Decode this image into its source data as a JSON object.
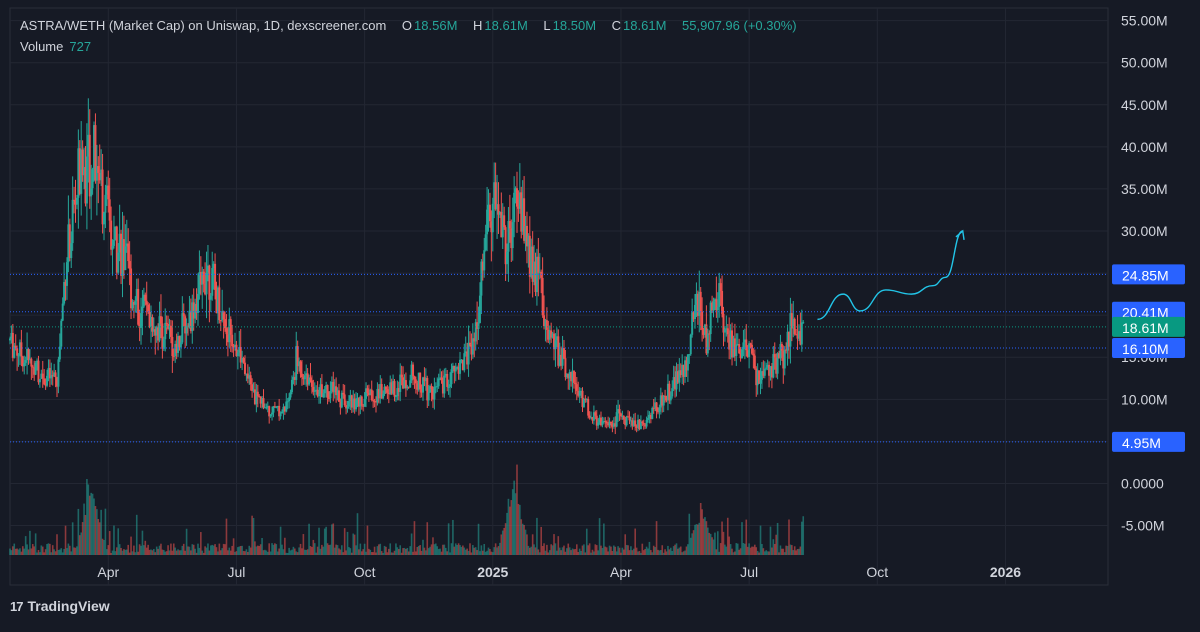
{
  "legend": {
    "pair": "ASTRA/WETH (Market Cap) on Uniswap, 1D, dexscreener.com",
    "o_label": "O",
    "o_val": "18.56M",
    "h_label": "H",
    "h_val": "18.61M",
    "l_label": "L",
    "l_val": "18.50M",
    "c_label": "C",
    "c_val": "18.61M",
    "change": "55,907.96 (+0.30%)",
    "volume_label": "Volume",
    "volume_val": "727"
  },
  "brand": {
    "logo": "17",
    "name": "TradingView"
  },
  "colors": {
    "background": "#161a25",
    "up": "#26a69a",
    "down": "#ef5350",
    "hline": "#2962ff",
    "projection": "#22c5e8",
    "price_tag": "#089981"
  },
  "chart_data": {
    "type": "candlestick",
    "title": "ASTRA/WETH (Market Cap) on Uniswap, 1D, dexscreener.com",
    "y_unit": "M",
    "ylim": [
      -8.5,
      56.5
    ],
    "y_ticks": [
      "55.00M",
      "50.00M",
      "45.00M",
      "40.00M",
      "35.00M",
      "30.00M",
      "25.00M",
      "20.00M",
      "15.00M",
      "10.00M",
      "5.00M",
      "0.0000",
      "-5.00M"
    ],
    "y_tick_values": [
      55,
      50,
      45,
      40,
      35,
      30,
      25,
      20,
      15,
      10,
      5,
      0,
      -5
    ],
    "x_ticks": [
      {
        "label": "Apr",
        "t": 2.0
      },
      {
        "label": "Jul",
        "t": 5.0
      },
      {
        "label": "Oct",
        "t": 8.0
      },
      {
        "label": "2025",
        "t": 11.0,
        "bold": true
      },
      {
        "label": "Apr",
        "t": 14.0
      },
      {
        "label": "Jul",
        "t": 17.0
      },
      {
        "label": "Oct",
        "t": 20.0
      },
      {
        "label": "2026",
        "t": 23.0,
        "bold": true
      }
    ],
    "x_range_months": [
      -0.3,
      25.4
    ],
    "price_path": [
      [
        -0.3,
        17
      ],
      [
        0.3,
        13.5
      ],
      [
        0.8,
        12
      ],
      [
        1.0,
        26
      ],
      [
        1.3,
        36
      ],
      [
        1.7,
        39
      ],
      [
        2.0,
        31
      ],
      [
        2.3,
        28
      ],
      [
        2.5,
        24
      ],
      [
        2.7,
        20
      ],
      [
        3.0,
        19.5
      ],
      [
        3.3,
        18
      ],
      [
        3.6,
        17
      ],
      [
        4.0,
        21
      ],
      [
        4.3,
        26
      ],
      [
        4.6,
        21
      ],
      [
        5.0,
        16
      ],
      [
        5.3,
        11.5
      ],
      [
        5.7,
        9
      ],
      [
        6.0,
        8.5
      ],
      [
        6.2,
        9
      ],
      [
        6.4,
        14.5
      ],
      [
        6.8,
        12
      ],
      [
        7.3,
        10.5
      ],
      [
        7.8,
        9.5
      ],
      [
        8.2,
        10.5
      ],
      [
        8.7,
        11.5
      ],
      [
        9.1,
        13
      ],
      [
        9.5,
        11
      ],
      [
        9.9,
        12
      ],
      [
        10.3,
        14.5
      ],
      [
        10.6,
        18
      ],
      [
        10.9,
        32
      ],
      [
        11.1,
        33
      ],
      [
        11.3,
        28
      ],
      [
        11.6,
        34
      ],
      [
        11.9,
        26
      ],
      [
        12.1,
        24
      ],
      [
        12.3,
        17
      ],
      [
        12.7,
        14
      ],
      [
        13.0,
        11
      ],
      [
        13.3,
        8
      ],
      [
        13.6,
        7
      ],
      [
        14.0,
        8
      ],
      [
        14.2,
        7.5
      ],
      [
        14.5,
        7
      ],
      [
        14.8,
        9
      ],
      [
        15.2,
        11.5
      ],
      [
        15.5,
        14
      ],
      [
        15.8,
        22
      ],
      [
        16.0,
        17
      ],
      [
        16.3,
        23
      ],
      [
        16.5,
        16.5
      ],
      [
        16.8,
        15
      ],
      [
        17.0,
        16
      ],
      [
        17.2,
        12.5
      ],
      [
        17.5,
        14
      ],
      [
        17.8,
        15
      ],
      [
        18.0,
        19
      ],
      [
        18.3,
        18.6
      ]
    ],
    "projection": [
      [
        18.6,
        19.5
      ],
      [
        19.2,
        22.5
      ],
      [
        19.6,
        20.5
      ],
      [
        20.2,
        23
      ],
      [
        20.8,
        22.5
      ],
      [
        21.3,
        23.5
      ],
      [
        21.6,
        24.5
      ],
      [
        22.0,
        30
      ]
    ],
    "horizontal_levels": [
      {
        "label": "24.85M",
        "value": 24.85
      },
      {
        "label": "20.41M",
        "value": 20.41
      },
      {
        "label": "16.10M",
        "value": 16.1
      },
      {
        "label": "4.95M",
        "value": 4.95
      }
    ],
    "last_price": {
      "label": "18.61M",
      "value": 18.61
    },
    "volume_spikes": [
      [
        1.6,
        15
      ],
      [
        11.5,
        16
      ],
      [
        15.9,
        9
      ]
    ],
    "grid": true
  }
}
